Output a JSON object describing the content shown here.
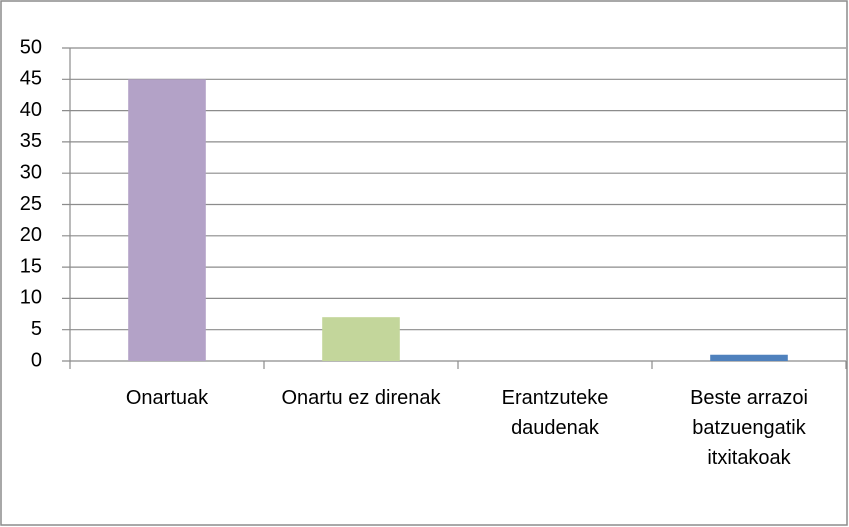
{
  "chart_data": {
    "type": "bar",
    "categories": [
      "Onartuak",
      "Onartu ez direnak",
      "Erantzuteke daudenak",
      "Beste arrazoi batzuengatik itxitakoak"
    ],
    "values": [
      45,
      7,
      0,
      1
    ],
    "colors": [
      "#b3a2c7",
      "#c3d69b",
      null,
      "#4f81bd"
    ],
    "ylim": [
      0,
      50
    ],
    "yticks": [
      0,
      5,
      10,
      15,
      20,
      25,
      30,
      35,
      40,
      45,
      50
    ],
    "grid": true
  }
}
